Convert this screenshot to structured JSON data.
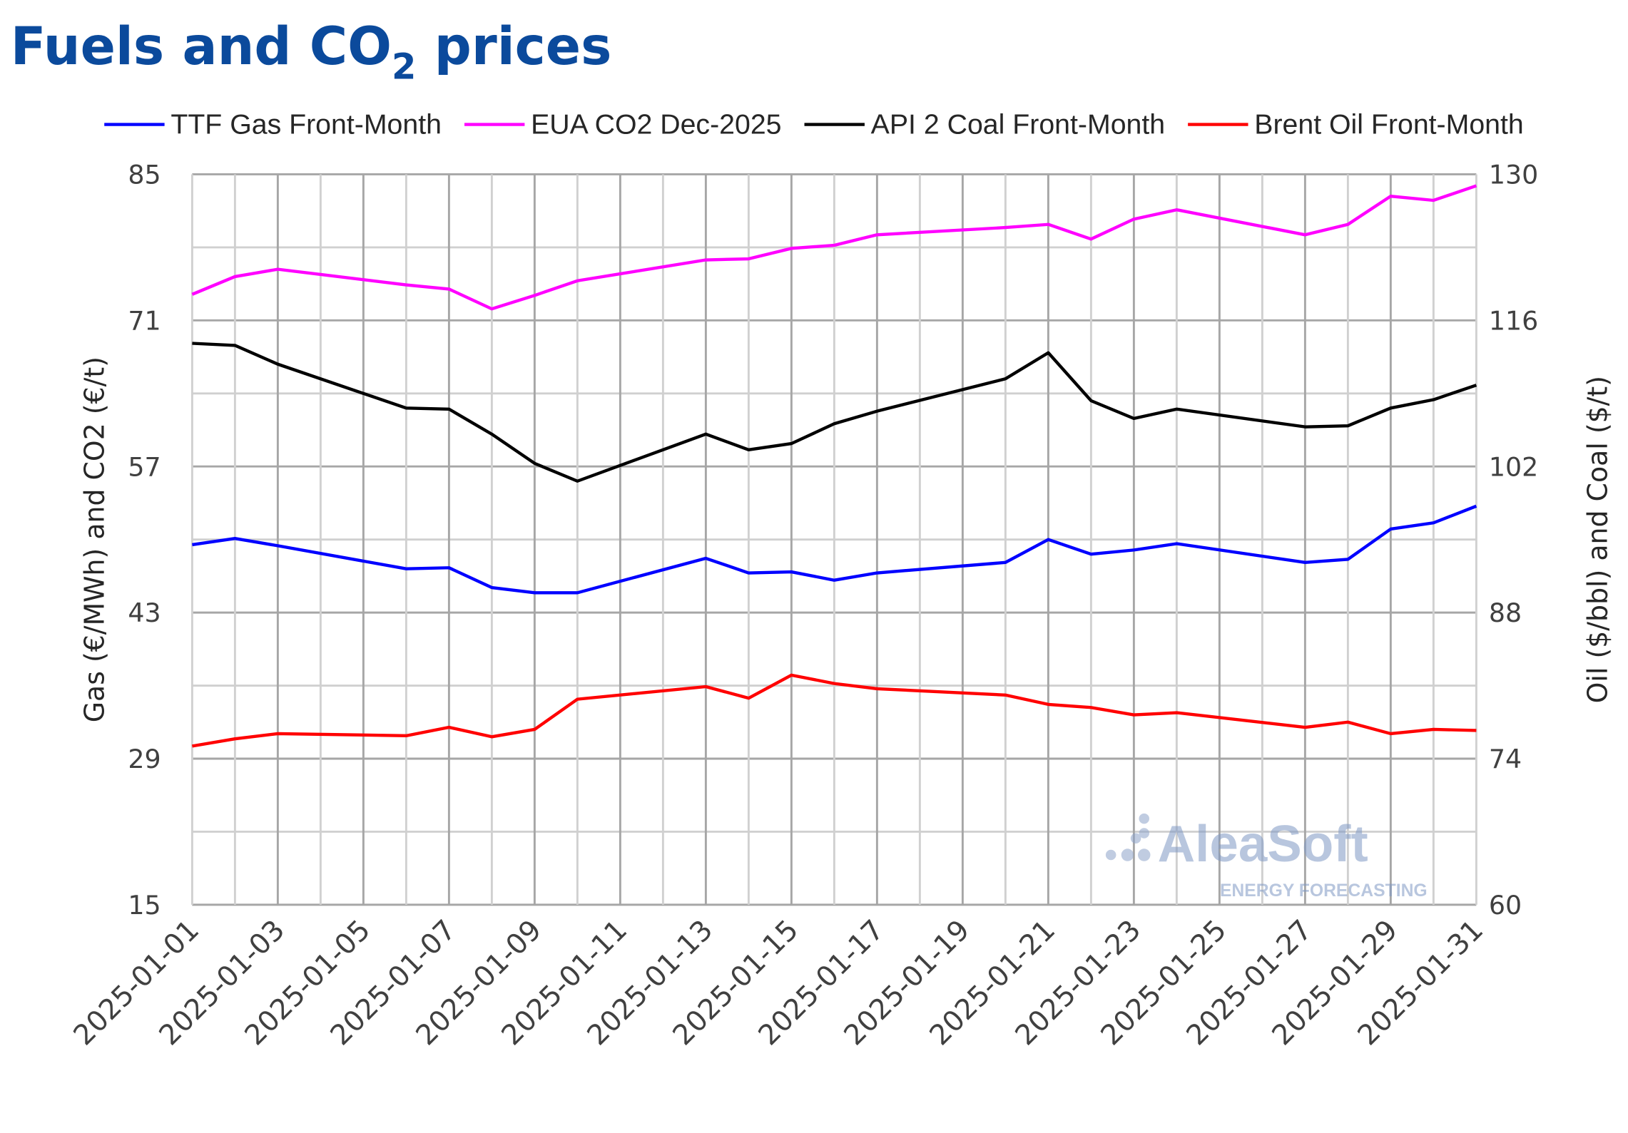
{
  "chart_data": {
    "type": "line",
    "title": "Fuels and CO",
    "title_subscript": "2",
    "title_suffix": " prices",
    "title_color": "#0b4a9c",
    "ylabel_left": "Gas (€/MWh) and CO2 (€/t)",
    "ylabel_right": "Oil ($/bbl) and Coal ($/t)",
    "ylim_left": [
      15,
      85
    ],
    "ylim_right": [
      60,
      130
    ],
    "yticks_left": [
      15,
      29,
      43,
      57,
      71,
      85
    ],
    "yticks_right": [
      60,
      74,
      88,
      102,
      116,
      130
    ],
    "grid": true,
    "legend_position": "top",
    "xticks": [
      "2025-01-01",
      "2025-01-03",
      "2025-01-05",
      "2025-01-07",
      "2025-01-09",
      "2025-01-11",
      "2025-01-13",
      "2025-01-15",
      "2025-01-17",
      "2025-01-19",
      "2025-01-21",
      "2025-01-23",
      "2025-01-25",
      "2025-01-27",
      "2025-01-29",
      "2025-01-31"
    ],
    "x": [
      "2025-01-01",
      "2025-01-02",
      "2025-01-03",
      "2025-01-06",
      "2025-01-07",
      "2025-01-08",
      "2025-01-09",
      "2025-01-10",
      "2025-01-13",
      "2025-01-14",
      "2025-01-15",
      "2025-01-16",
      "2025-01-17",
      "2025-01-20",
      "2025-01-21",
      "2025-01-22",
      "2025-01-23",
      "2025-01-24",
      "2025-01-27",
      "2025-01-28",
      "2025-01-29",
      "2025-01-30",
      "2025-01-31"
    ],
    "series": [
      {
        "name": "TTF Gas Front-Month",
        "axis": "left",
        "color": "#0000ff",
        "values": [
          49.5,
          50.1,
          49.4,
          47.2,
          47.3,
          45.4,
          44.9,
          44.9,
          48.2,
          46.8,
          46.9,
          46.1,
          46.8,
          47.8,
          50.0,
          48.6,
          49.0,
          49.6,
          47.8,
          48.1,
          51.0,
          51.6,
          53.2
        ]
      },
      {
        "name": "EUA CO2 Dec-2025",
        "axis": "left",
        "color": "#ff00ff",
        "values": [
          73.5,
          75.2,
          75.9,
          74.4,
          74.0,
          72.1,
          73.4,
          74.8,
          76.8,
          76.9,
          77.9,
          78.2,
          79.2,
          79.9,
          80.2,
          78.8,
          80.7,
          81.6,
          79.2,
          80.2,
          82.9,
          82.5,
          83.9
        ]
      },
      {
        "name": "API 2 Coal Front-Month",
        "axis": "right",
        "color": "#000000",
        "values": [
          113.8,
          113.6,
          111.8,
          107.6,
          107.5,
          105.1,
          102.3,
          100.6,
          105.1,
          103.6,
          104.2,
          106.1,
          107.3,
          110.4,
          112.9,
          108.3,
          106.6,
          107.5,
          105.8,
          105.9,
          107.6,
          108.4,
          109.8
        ]
      },
      {
        "name": "Brent Oil Front-Month",
        "axis": "right",
        "color": "#ff0000",
        "values": [
          75.2,
          75.9,
          76.4,
          76.2,
          77.0,
          76.1,
          76.8,
          79.7,
          80.9,
          79.8,
          82.0,
          81.2,
          80.7,
          80.1,
          79.2,
          78.9,
          78.2,
          78.4,
          77.0,
          77.5,
          76.4,
          76.8,
          76.7
        ]
      }
    ]
  },
  "watermark": {
    "brand": "AleaSoft",
    "tagline": "ENERGY FORECASTING"
  }
}
